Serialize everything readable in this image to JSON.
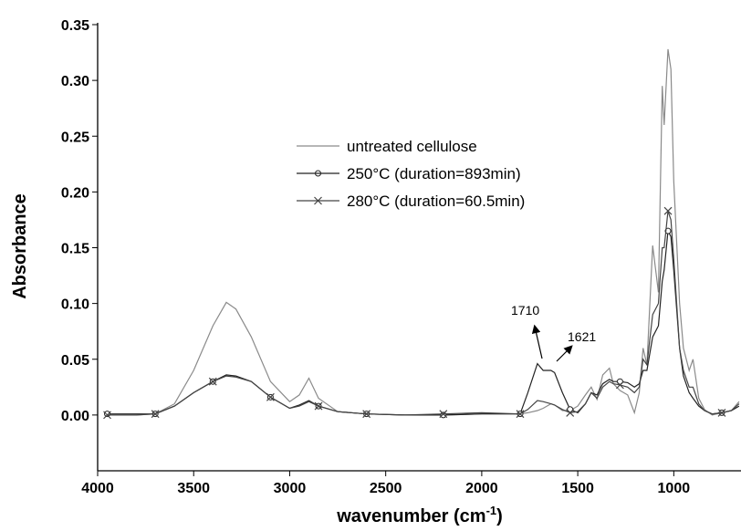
{
  "chart_data": {
    "type": "line",
    "x_label": {
      "text": "wavenumber (cm",
      "superscript": "-1",
      "suffix": ")"
    },
    "y_label": "Absorbance",
    "xlim": [
      4000,
      650
    ],
    "xticks": [
      4000,
      3500,
      3000,
      2500,
      2000,
      1500,
      1000
    ],
    "ylim": [
      -0.05,
      0.35
    ],
    "yticks": [
      {
        "value": 0,
        "label": "0.00"
      },
      {
        "value": 0.05,
        "label": "0.05"
      },
      {
        "value": 0.1,
        "label": "0.10"
      },
      {
        "value": 0.15,
        "label": "0.15"
      },
      {
        "value": 0.2,
        "label": "0.20"
      },
      {
        "value": 0.25,
        "label": "0.25"
      },
      {
        "value": 0.3,
        "label": "0.30"
      },
      {
        "value": 0.35,
        "label": "0.35"
      }
    ],
    "x": [
      3950,
      3800,
      3700,
      3600,
      3500,
      3400,
      3330,
      3280,
      3200,
      3100,
      3000,
      2950,
      2900,
      2850,
      2750,
      2600,
      2400,
      2200,
      2000,
      1800,
      1760,
      1710,
      1680,
      1640,
      1621,
      1580,
      1540,
      1500,
      1460,
      1430,
      1400,
      1370,
      1335,
      1315,
      1280,
      1240,
      1205,
      1180,
      1160,
      1140,
      1110,
      1080,
      1060,
      1050,
      1030,
      1015,
      1000,
      970,
      950,
      920,
      900,
      870,
      840,
      800,
      750,
      700,
      660
    ],
    "series": [
      {
        "name": "untreated cellulose",
        "color": "#8a8a8a",
        "marker": "none",
        "values": [
          0,
          0,
          0.001,
          0.01,
          0.04,
          0.08,
          0.101,
          0.095,
          0.07,
          0.03,
          0.012,
          0.018,
          0.033,
          0.015,
          0.003,
          0.001,
          0,
          0,
          0.001,
          0.001,
          0.002,
          0.004,
          0.006,
          0.01,
          0.009,
          0.004,
          0.004,
          0.008,
          0.018,
          0.025,
          0.014,
          0.036,
          0.042,
          0.028,
          0.022,
          0.018,
          0.002,
          0.02,
          0.06,
          0.045,
          0.152,
          0.11,
          0.295,
          0.26,
          0.328,
          0.31,
          0.21,
          0.1,
          0.06,
          0.04,
          0.05,
          0.015,
          0.005,
          0,
          0.002,
          0.004,
          0.012
        ]
      },
      {
        "name": "250°C (duration=893min)",
        "color": "#222222",
        "marker": "circle",
        "values": [
          0.001,
          0.001,
          0.001,
          0.008,
          0.02,
          0.03,
          0.036,
          0.035,
          0.03,
          0.016,
          0.006,
          0.009,
          0.013,
          0.008,
          0.003,
          0.001,
          0,
          0,
          0.001,
          0.001,
          0.02,
          0.046,
          0.04,
          0.04,
          0.038,
          0.02,
          0.005,
          0.002,
          0.01,
          0.02,
          0.018,
          0.028,
          0.032,
          0.03,
          0.03,
          0.029,
          0.025,
          0.028,
          0.04,
          0.04,
          0.07,
          0.08,
          0.12,
          0.13,
          0.165,
          0.16,
          0.13,
          0.06,
          0.035,
          0.02,
          0.015,
          0.008,
          0.004,
          0.001,
          0.002,
          0.004,
          0.008
        ]
      },
      {
        "name": "280°C (duration=60.5min)",
        "color": "#444444",
        "marker": "cross",
        "values": [
          0,
          0,
          0.001,
          0.008,
          0.02,
          0.03,
          0.035,
          0.034,
          0.03,
          0.016,
          0.006,
          0.008,
          0.012,
          0.008,
          0.003,
          0.001,
          0,
          0.001,
          0.002,
          0.001,
          0.005,
          0.013,
          0.012,
          0.01,
          0.009,
          0.005,
          0.002,
          0.003,
          0.01,
          0.02,
          0.015,
          0.025,
          0.03,
          0.028,
          0.027,
          0.025,
          0.02,
          0.025,
          0.05,
          0.045,
          0.09,
          0.1,
          0.15,
          0.15,
          0.183,
          0.175,
          0.14,
          0.06,
          0.04,
          0.025,
          0.025,
          0.01,
          0.004,
          0.001,
          0.002,
          0.004,
          0.01
        ]
      }
    ],
    "annotations": [
      "1710",
      "1621"
    ]
  }
}
